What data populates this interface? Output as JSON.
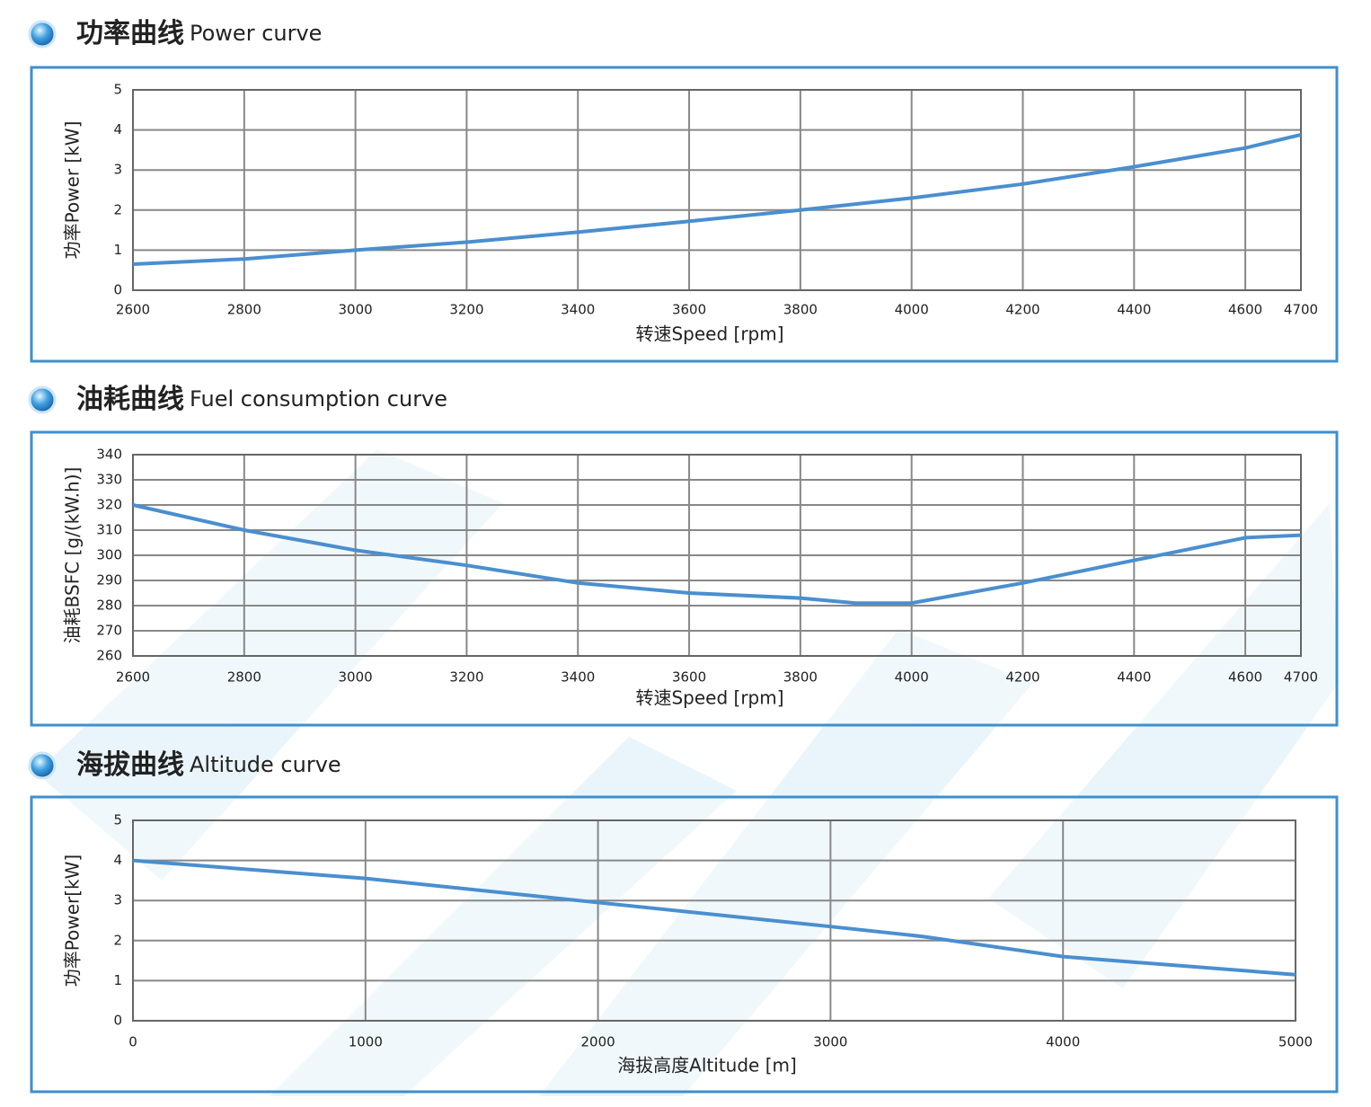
{
  "chart_data": [
    {
      "type": "line",
      "title": "功率曲线",
      "title_en": "Power curve",
      "x_label": "转速Speed [rpm]",
      "y_label": "功率Power [kW]",
      "xlim": [
        2600,
        4700
      ],
      "xticks": [
        2600,
        2800,
        3000,
        3200,
        3400,
        3600,
        3800,
        4000,
        4200,
        4400,
        4600,
        4700
      ],
      "ylim": [
        0,
        5
      ],
      "yticks": [
        0,
        1,
        2,
        3,
        4,
        5
      ],
      "grid": true,
      "x": [
        2600,
        2800,
        3000,
        3200,
        3400,
        3600,
        3800,
        4000,
        4200,
        4400,
        4600,
        4700
      ],
      "series": [
        {
          "color": "#4a8fcf",
          "values": [
            0.65,
            0.78,
            1.0,
            1.2,
            1.45,
            1.72,
            2.0,
            2.3,
            2.65,
            3.08,
            3.55,
            3.88
          ]
        }
      ]
    },
    {
      "type": "line",
      "title": "油耗曲线",
      "title_en": "Fuel consumption curve",
      "x_label": "转速Speed [rpm]",
      "y_label": "油耗BSFC [g/(kW.h)]",
      "xlim": [
        2600,
        4700
      ],
      "xticks": [
        2600,
        2800,
        3000,
        3200,
        3400,
        3600,
        3800,
        4000,
        4200,
        4400,
        4600,
        4700
      ],
      "ylim": [
        260,
        340
      ],
      "yticks": [
        260,
        270,
        280,
        290,
        300,
        310,
        320,
        330,
        340
      ],
      "grid": true,
      "x": [
        2600,
        2800,
        3000,
        3200,
        3400,
        3600,
        3800,
        3900,
        4000,
        4200,
        4400,
        4600,
        4700
      ],
      "series": [
        {
          "color": "#4a8fcf",
          "values": [
            320,
            310,
            302,
            296,
            289,
            285,
            283,
            281,
            281,
            289,
            298,
            307,
            308
          ]
        }
      ]
    },
    {
      "type": "line",
      "title": "海拔曲线",
      "title_en": "Altitude curve",
      "x_label": "海拔高度Altitude [m]",
      "y_label": "功率Power[kW]",
      "xlim": [
        0,
        5000
      ],
      "xticks": [
        0,
        1000,
        2000,
        3000,
        4000,
        5000
      ],
      "ylim": [
        0,
        5
      ],
      "yticks": [
        0,
        1,
        2,
        3,
        4,
        5
      ],
      "grid": true,
      "x": [
        0,
        1000,
        2000,
        3000,
        3400,
        4000,
        5000
      ],
      "series": [
        {
          "color": "#4a8fcf",
          "values": [
            4.0,
            3.55,
            2.95,
            2.35,
            2.1,
            1.6,
            1.15
          ]
        }
      ]
    }
  ]
}
